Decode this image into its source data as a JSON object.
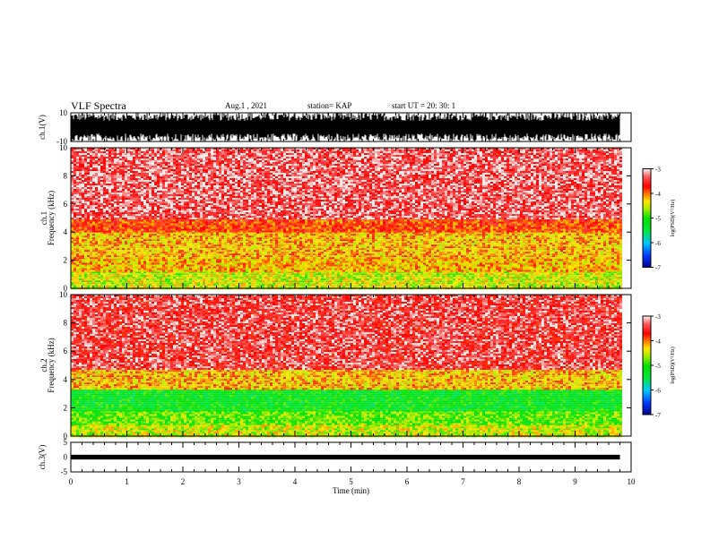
{
  "header": {
    "title": "VLF Spectra",
    "date": "Aug.1 , 2021",
    "station": "station= KAP",
    "start": "start UT = 20: 30: 1"
  },
  "colors": {
    "spectrogram_base": "#ff0000",
    "spectrogram_mid": "#ffe400",
    "spectrogram_low": "#00e000",
    "waveform": "#000000"
  },
  "chart_data": [
    {
      "type": "line",
      "panel": "ch1-waveform",
      "ylabel": "ch.1(V)",
      "yticks": [
        "10",
        "-10"
      ],
      "ylim": [
        -10,
        10
      ],
      "note": "dense black waveform trace saturating near ±10 V"
    },
    {
      "type": "heatmap",
      "panel": "ch1-spectrogram",
      "ylabel": "ch.1 Frequency (kHz)",
      "ylim": [
        0,
        10
      ],
      "yticks": [
        "0",
        "2",
        "4",
        "6",
        "8",
        "10"
      ],
      "x_range_min": [
        0,
        9.8
      ],
      "bands_khz": [
        {
          "from": 0.0,
          "to": 1.2,
          "level": -4.5
        },
        {
          "from": 1.2,
          "to": 2.2,
          "level": -4.2
        },
        {
          "from": 2.2,
          "to": 4.0,
          "level": -4.2
        },
        {
          "from": 4.0,
          "to": 5.0,
          "level": -3.8
        },
        {
          "from": 5.0,
          "to": 10.0,
          "level": -3.3
        }
      ],
      "colorbar": {
        "label": "log(PSD)(V²/Hz)",
        "range": [
          -7,
          -3
        ],
        "ticks": [
          "-3",
          "-4",
          "-5",
          "-6",
          "-7"
        ]
      }
    },
    {
      "type": "heatmap",
      "panel": "ch2-spectrogram",
      "ylabel": "ch.2 Frequency (kHz)",
      "ylim": [
        0,
        10
      ],
      "yticks": [
        "0",
        "2",
        "4",
        "6",
        "8",
        "10"
      ],
      "x_range_min": [
        0,
        9.8
      ],
      "bands_khz": [
        {
          "from": 0.0,
          "to": 0.8,
          "level": -4.5
        },
        {
          "from": 0.8,
          "to": 1.8,
          "level": -4.8
        },
        {
          "from": 1.8,
          "to": 3.4,
          "level": -5.2
        },
        {
          "from": 3.4,
          "to": 4.8,
          "level": -4.2
        },
        {
          "from": 4.8,
          "to": 10.0,
          "level": -3.4
        }
      ],
      "colorbar": {
        "label": "log(PSD)(V²/Hz)",
        "range": [
          -7,
          -3
        ],
        "ticks": [
          "-3",
          "-4",
          "-5",
          "-6",
          "-7"
        ]
      }
    },
    {
      "type": "line",
      "panel": "ch3-waveform",
      "ylabel": "ch.3(V)",
      "yticks": [
        "5",
        "0",
        "-5"
      ],
      "ylim": [
        -5,
        5
      ],
      "note": "thick black trace near 0 V"
    }
  ],
  "xaxis": {
    "label": "Time (min)",
    "ticks": [
      "0",
      "1",
      "2",
      "3",
      "4",
      "5",
      "6",
      "7",
      "8",
      "9",
      "10"
    ],
    "range": [
      0,
      10
    ]
  }
}
